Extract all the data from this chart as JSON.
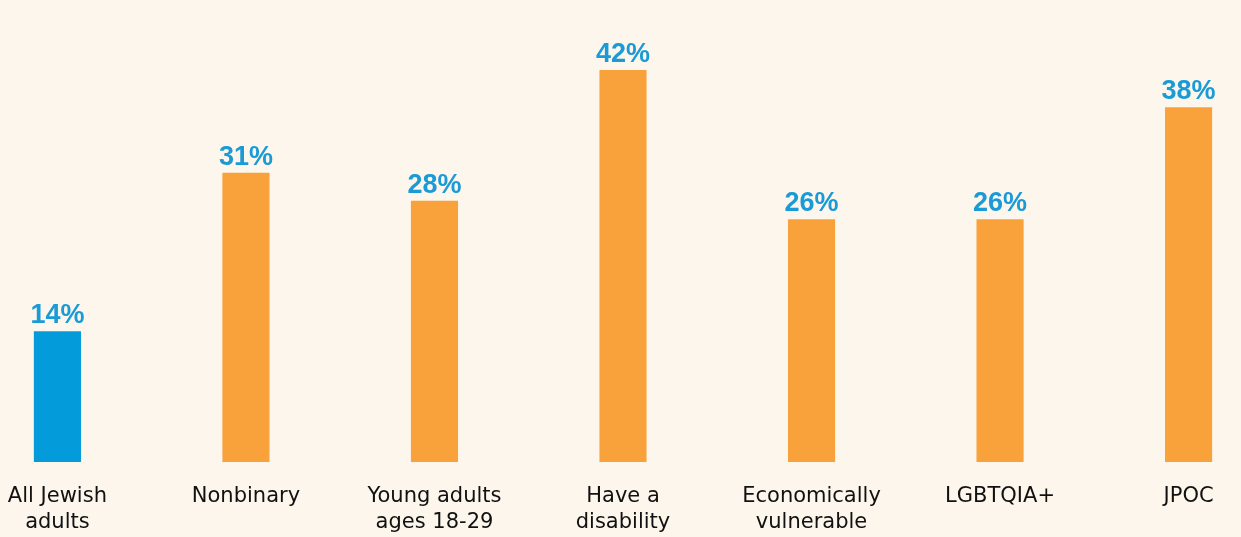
{
  "chart_data": {
    "type": "bar",
    "categories": [
      "All Jewish adults",
      "Nonbinary",
      "Young adults ages 18-29",
      "Have a disability",
      "Economically vulnerable",
      "LGBTQIA+",
      "JPOC"
    ],
    "values": [
      14,
      31,
      28,
      42,
      26,
      26,
      38
    ],
    "colors": [
      "#049bdb",
      "#f9a23b",
      "#f9a23b",
      "#f9a23b",
      "#f9a23b",
      "#f9a23b",
      "#f9a23b"
    ],
    "value_labels": [
      "14%",
      "31%",
      "28%",
      "42%",
      "26%",
      "26%",
      "38%"
    ]
  }
}
